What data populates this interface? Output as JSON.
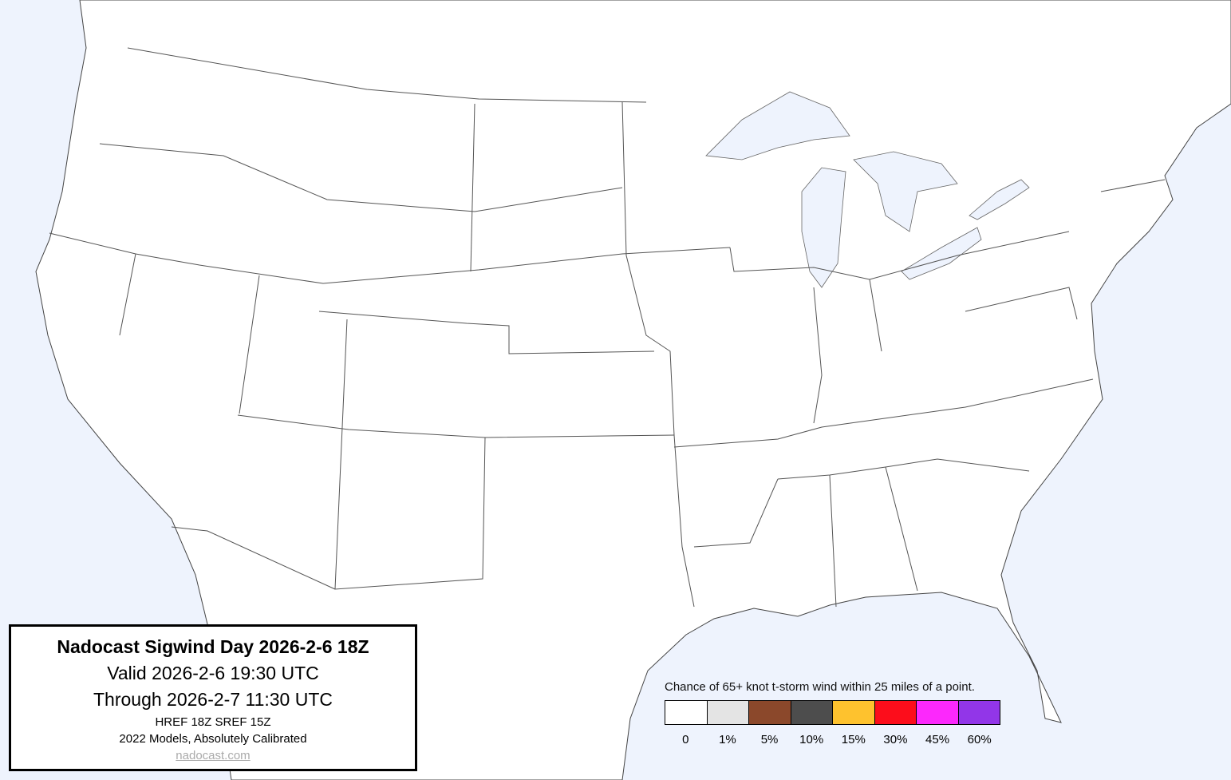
{
  "title_box": {
    "title": "Nadocast Sigwind Day 2026-2-6 18Z",
    "valid": "Valid 2026-2-6 19:30 UTC",
    "through": "Through 2026-2-7 11:30 UTC",
    "models": "HREF 18Z SREF 15Z",
    "calibration": "2022 Models, Absolutely Calibrated",
    "link": "nadocast.com"
  },
  "legend": {
    "title": "Chance of 65+ knot t-storm wind within 25 miles of a point.",
    "items": [
      {
        "label": "0",
        "color": "#ffffff"
      },
      {
        "label": "1%",
        "color": "#e4e4e4"
      },
      {
        "label": "5%",
        "color": "#8b482b"
      },
      {
        "label": "10%",
        "color": "#4d4d4d"
      },
      {
        "label": "15%",
        "color": "#fec22e"
      },
      {
        "label": "30%",
        "color": "#fc0d1b"
      },
      {
        "label": "45%",
        "color": "#fc28fc"
      },
      {
        "label": "60%",
        "color": "#9236e8"
      }
    ]
  },
  "colors": {
    "water": "#eef3fd",
    "land": "#ffffff",
    "border": "#555555"
  }
}
